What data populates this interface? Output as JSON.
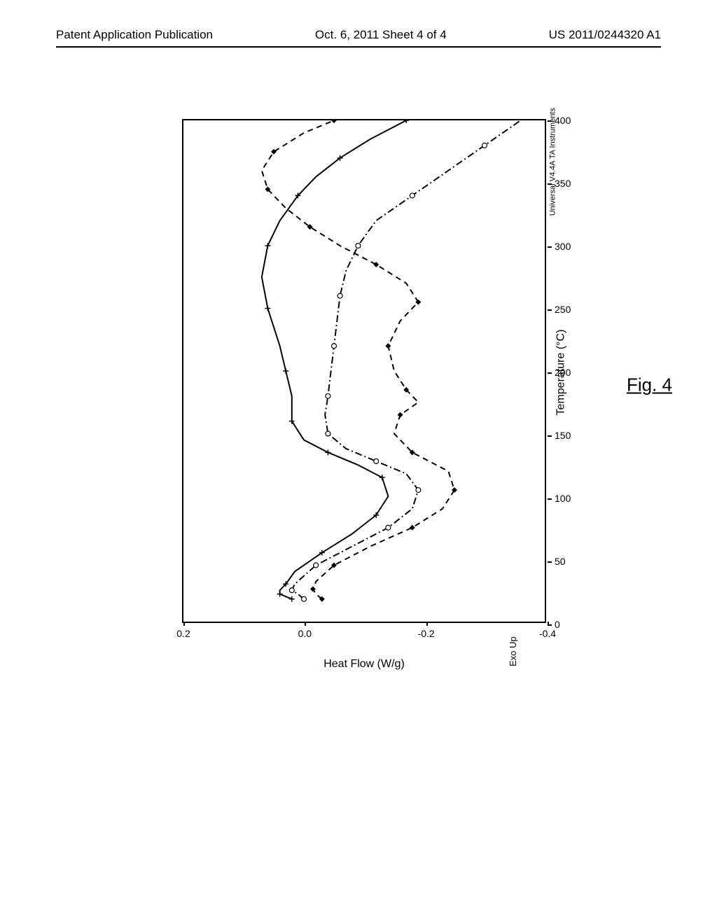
{
  "header": {
    "left": "Patent Application Publication",
    "center": "Oct. 6, 2011  Sheet 4 of 4",
    "right": "US 2011/0244320 A1"
  },
  "figure": {
    "caption": "Fig. 4",
    "ylabel": "Heat Flow (W/g)",
    "xlabel": "Temperature (°C)",
    "note_exo": "Exo Up",
    "note_instrument": "Universal V4.4A TA Instruments",
    "xlim": [
      0,
      400
    ],
    "ylim": [
      -0.4,
      0.2
    ],
    "xticks": [
      0,
      50,
      100,
      150,
      200,
      250,
      300,
      350,
      400
    ],
    "yticks": [
      -0.4,
      -0.2,
      0.0,
      0.2
    ],
    "background_color": "#ffffff",
    "axis_color": "#000000",
    "line_width": 2,
    "series": [
      {
        "name": "curve-solid",
        "style": "solid",
        "color": "#000000",
        "marker": "plus",
        "points": [
          [
            18,
            0.02
          ],
          [
            20,
            0.03
          ],
          [
            22,
            0.04
          ],
          [
            25,
            0.04
          ],
          [
            30,
            0.03
          ],
          [
            40,
            0.015
          ],
          [
            55,
            -0.03
          ],
          [
            70,
            -0.08
          ],
          [
            85,
            -0.12
          ],
          [
            100,
            -0.14
          ],
          [
            115,
            -0.13
          ],
          [
            125,
            -0.09
          ],
          [
            135,
            -0.04
          ],
          [
            145,
            0.0
          ],
          [
            160,
            0.02
          ],
          [
            180,
            0.02
          ],
          [
            200,
            0.03
          ],
          [
            220,
            0.04
          ],
          [
            250,
            0.06
          ],
          [
            275,
            0.07
          ],
          [
            300,
            0.06
          ],
          [
            320,
            0.04
          ],
          [
            340,
            0.01
          ],
          [
            355,
            -0.02
          ],
          [
            370,
            -0.06
          ],
          [
            385,
            -0.11
          ],
          [
            400,
            -0.17
          ]
        ]
      },
      {
        "name": "curve-dashdot",
        "style": "dashdot",
        "color": "#000000",
        "marker": "open-circle",
        "points": [
          [
            18,
            0.0
          ],
          [
            22,
            0.01
          ],
          [
            25,
            0.02
          ],
          [
            30,
            0.015
          ],
          [
            45,
            -0.02
          ],
          [
            60,
            -0.08
          ],
          [
            75,
            -0.14
          ],
          [
            90,
            -0.18
          ],
          [
            105,
            -0.19
          ],
          [
            118,
            -0.17
          ],
          [
            128,
            -0.12
          ],
          [
            138,
            -0.07
          ],
          [
            150,
            -0.04
          ],
          [
            165,
            -0.035
          ],
          [
            180,
            -0.04
          ],
          [
            200,
            -0.045
          ],
          [
            220,
            -0.05
          ],
          [
            240,
            -0.055
          ],
          [
            260,
            -0.06
          ],
          [
            280,
            -0.07
          ],
          [
            300,
            -0.09
          ],
          [
            320,
            -0.12
          ],
          [
            340,
            -0.18
          ],
          [
            360,
            -0.24
          ],
          [
            380,
            -0.3
          ],
          [
            400,
            -0.36
          ]
        ]
      },
      {
        "name": "curve-dashed",
        "style": "dashed",
        "color": "#000000",
        "marker": "filled-diamond",
        "points": [
          [
            18,
            -0.03
          ],
          [
            22,
            -0.02
          ],
          [
            26,
            -0.015
          ],
          [
            32,
            -0.02
          ],
          [
            45,
            -0.05
          ],
          [
            60,
            -0.11
          ],
          [
            75,
            -0.18
          ],
          [
            90,
            -0.23
          ],
          [
            105,
            -0.25
          ],
          [
            120,
            -0.24
          ],
          [
            135,
            -0.18
          ],
          [
            150,
            -0.15
          ],
          [
            165,
            -0.16
          ],
          [
            175,
            -0.19
          ],
          [
            185,
            -0.17
          ],
          [
            200,
            -0.15
          ],
          [
            220,
            -0.14
          ],
          [
            240,
            -0.16
          ],
          [
            255,
            -0.19
          ],
          [
            270,
            -0.17
          ],
          [
            285,
            -0.12
          ],
          [
            300,
            -0.06
          ],
          [
            315,
            -0.01
          ],
          [
            330,
            0.03
          ],
          [
            345,
            0.06
          ],
          [
            360,
            0.07
          ],
          [
            375,
            0.05
          ],
          [
            390,
            0.0
          ],
          [
            400,
            -0.05
          ]
        ]
      }
    ]
  }
}
